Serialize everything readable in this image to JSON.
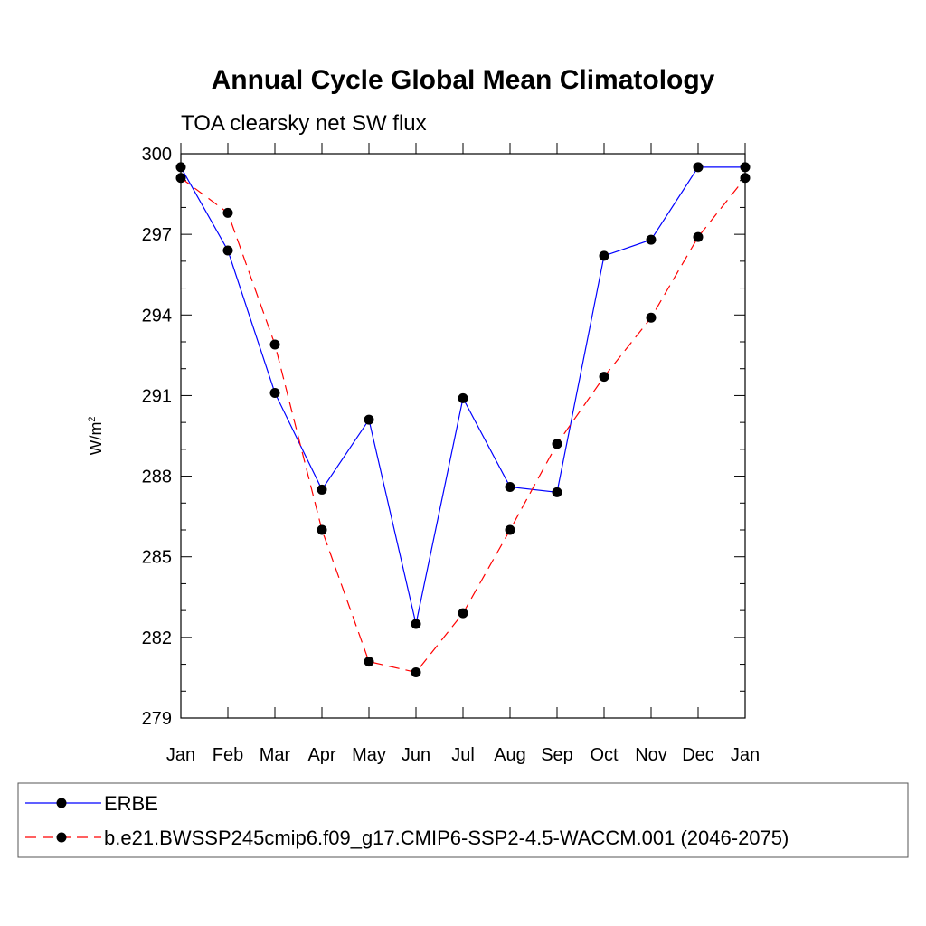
{
  "chart_data": {
    "type": "line",
    "title": "Annual Cycle Global Mean Climatology",
    "subtitle": "TOA clearsky net SW flux",
    "ylabel": "W/m",
    "ylabel_sup": "2",
    "xlabel": "",
    "categories": [
      "Jan",
      "Feb",
      "Mar",
      "Apr",
      "May",
      "Jun",
      "Jul",
      "Aug",
      "Sep",
      "Oct",
      "Nov",
      "Dec",
      "Jan"
    ],
    "ylim": [
      279,
      300
    ],
    "yticks": [
      279,
      282,
      285,
      288,
      291,
      294,
      297,
      300
    ],
    "ytick_labels": [
      "279",
      "282",
      "285",
      "288",
      "291",
      "294",
      "297",
      "300"
    ],
    "series": [
      {
        "name": "ERBE",
        "color": "#0000ff",
        "dash": "solid",
        "values": [
          299.5,
          296.4,
          291.1,
          287.5,
          290.1,
          282.5,
          290.9,
          287.6,
          287.4,
          296.2,
          296.8,
          299.5,
          299.5
        ]
      },
      {
        "name": "b.e21.BWSSP245cmip6.f09_g17.CMIP6-SSP2-4.5-WACCM.001 (2046-2075)",
        "color": "#ff0000",
        "dash": "dashed",
        "values": [
          299.1,
          297.8,
          292.9,
          286.0,
          281.1,
          280.7,
          282.9,
          286.0,
          289.2,
          291.7,
          293.9,
          296.9,
          299.1
        ]
      }
    ],
    "grid": false,
    "legend_position": "bottom"
  }
}
